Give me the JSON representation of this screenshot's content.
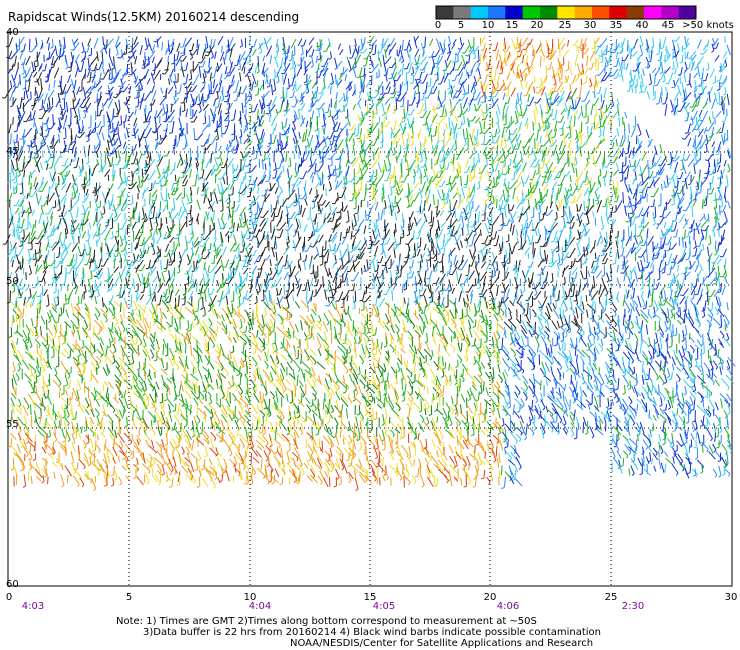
{
  "title": "Rapidscat Winds(12.5KM) 20160214 descending",
  "legend": {
    "labels": [
      "0",
      "5",
      "10",
      "15",
      "20",
      "25",
      "30",
      "35",
      "40",
      "45",
      ">50 knots"
    ],
    "colors": [
      "#3a3a3a",
      "#7b7b7b",
      "#00c8ff",
      "#1e78ff",
      "#0000cc",
      "#00c800",
      "#008c00",
      "#ffe600",
      "#ffaa00",
      "#ff5000",
      "#dc0000",
      "#8c3c00",
      "#ff00ff",
      "#b400c8",
      "#50009c"
    ]
  },
  "axes": {
    "lat_labels": [
      "40",
      "45",
      "50",
      "55",
      "60"
    ],
    "lon_labels": [
      "0",
      "5",
      "10",
      "15",
      "20",
      "25",
      "30"
    ],
    "time_labels": [
      "4:03",
      "4:04",
      "4:05",
      "4:06",
      "2:30"
    ]
  },
  "notes": {
    "line1": "Note: 1) Times are GMT 2)Times along bottom correspond to measurement at ~50S",
    "line2": "3)Data buffer is 22 hrs from 20160214 4) Black wind barbs indicate possible contamination",
    "line3": "NOAA/NESDIS/Center for Satellite Applications and Research"
  }
}
